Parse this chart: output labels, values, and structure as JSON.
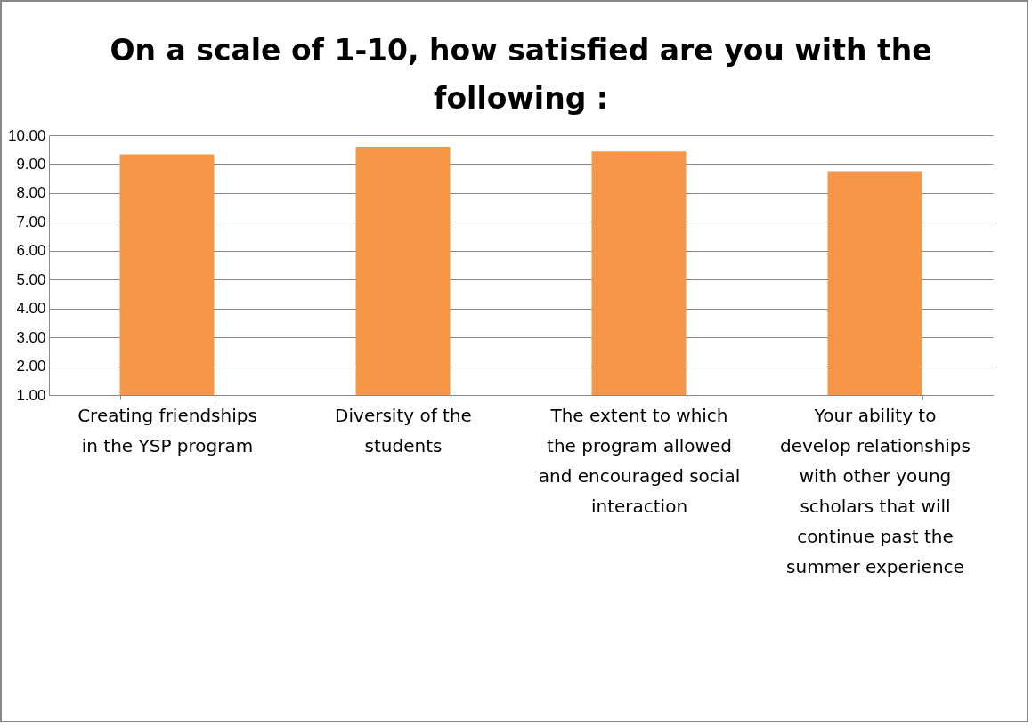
{
  "chart_data": {
    "type": "bar",
    "title": "On a scale of 1-10, how satisfied are you with the following :",
    "categories": [
      "Creating friendships in the YSP program",
      "Diversity of the students",
      "The extent to which the program allowed and encouraged social interaction",
      "Your ability to develop relationships with other young scholars that will continue past the summer experience"
    ],
    "values": [
      9.34,
      9.6,
      9.44,
      8.75
    ],
    "color": "#f79646",
    "ylim": [
      1,
      10
    ],
    "yticks": [
      {
        "value": 1,
        "label": "1.00"
      },
      {
        "value": 2,
        "label": "2.00"
      },
      {
        "value": 3,
        "label": "3.00"
      },
      {
        "value": 4,
        "label": "4.00"
      },
      {
        "value": 5,
        "label": "5.00"
      },
      {
        "value": 6,
        "label": "6.00"
      },
      {
        "value": 7,
        "label": "7.00"
      },
      {
        "value": 8,
        "label": "8.00"
      },
      {
        "value": 9,
        "label": "9.00"
      },
      {
        "value": 10,
        "label": "10.00"
      }
    ],
    "grid": "y"
  }
}
